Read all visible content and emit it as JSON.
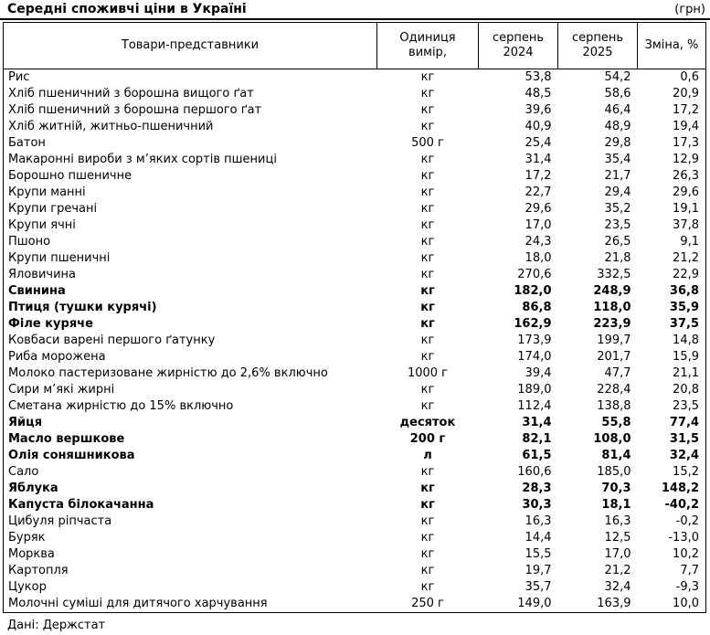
{
  "title": "Середні споживчі ціни в Україні",
  "currency_note": "(грн)",
  "footer": "Дані: Держстат",
  "chart_data": {
    "type": "table",
    "title": "Середні споживчі ціни в Україні",
    "unit_note": "(грн)",
    "source": "Дані: Держстат",
    "columns": [
      "Товари-представники",
      "Одиниця вимір,",
      "серпень 2024",
      "серпень 2025",
      "Зміна, %"
    ],
    "rows": [
      {
        "product": "Рис",
        "unit": "кг",
        "aug2024": "53,8",
        "aug2025": "54,2",
        "change_pct": "0,6",
        "bold": false
      },
      {
        "product": "Хліб пшеничний з борошна вищого ґат",
        "unit": "кг",
        "aug2024": "48,5",
        "aug2025": "58,6",
        "change_pct": "20,9",
        "bold": false
      },
      {
        "product": "Хліб пшеничний з борошна першого ґат",
        "unit": "кг",
        "aug2024": "39,6",
        "aug2025": "46,4",
        "change_pct": "17,2",
        "bold": false
      },
      {
        "product": "Хліб житній, житньо-пшеничний",
        "unit": "кг",
        "aug2024": "40,9",
        "aug2025": "48,9",
        "change_pct": "19,4",
        "bold": false
      },
      {
        "product": "Батон",
        "unit": "500 г",
        "aug2024": "25,4",
        "aug2025": "29,8",
        "change_pct": "17,3",
        "bold": false
      },
      {
        "product": "Макаронні вироби з м’яких сортів пшениці",
        "unit": "кг",
        "aug2024": "31,4",
        "aug2025": "35,4",
        "change_pct": "12,9",
        "bold": false
      },
      {
        "product": "Борошно пшеничне",
        "unit": "кг",
        "aug2024": "17,2",
        "aug2025": "21,7",
        "change_pct": "26,3",
        "bold": false
      },
      {
        "product": "Крупи манні",
        "unit": "кг",
        "aug2024": "22,7",
        "aug2025": "29,4",
        "change_pct": "29,6",
        "bold": false
      },
      {
        "product": "Крупи гречані",
        "unit": "кг",
        "aug2024": "29,6",
        "aug2025": "35,2",
        "change_pct": "19,1",
        "bold": false
      },
      {
        "product": "Крупи ячні",
        "unit": "кг",
        "aug2024": "17,0",
        "aug2025": "23,5",
        "change_pct": "37,8",
        "bold": false
      },
      {
        "product": "Пшоно",
        "unit": "кг",
        "aug2024": "24,3",
        "aug2025": "26,5",
        "change_pct": "9,1",
        "bold": false
      },
      {
        "product": "Крупи пшеничні",
        "unit": "кг",
        "aug2024": "18,0",
        "aug2025": "21,8",
        "change_pct": "21,2",
        "bold": false
      },
      {
        "product": "Яловичина",
        "unit": "кг",
        "aug2024": "270,6",
        "aug2025": "332,5",
        "change_pct": "22,9",
        "bold": false
      },
      {
        "product": "Свинина",
        "unit": "кг",
        "aug2024": "182,0",
        "aug2025": "248,9",
        "change_pct": "36,8",
        "bold": true
      },
      {
        "product": "Птиця (тушки курячі)",
        "unit": "кг",
        "aug2024": "86,8",
        "aug2025": "118,0",
        "change_pct": "35,9",
        "bold": true
      },
      {
        "product": "Філе куряче",
        "unit": "кг",
        "aug2024": "162,9",
        "aug2025": "223,9",
        "change_pct": "37,5",
        "bold": true
      },
      {
        "product": "Ковбаси варені першого ґатунку",
        "unit": "кг",
        "aug2024": "173,9",
        "aug2025": "199,7",
        "change_pct": "14,8",
        "bold": false
      },
      {
        "product": "Риба морожена",
        "unit": "кг",
        "aug2024": "174,0",
        "aug2025": "201,7",
        "change_pct": "15,9",
        "bold": false
      },
      {
        "product": "Молоко пастеризоване жирністю до 2,6% включно",
        "unit": "1000 г",
        "aug2024": "39,4",
        "aug2025": "47,7",
        "change_pct": "21,1",
        "bold": false
      },
      {
        "product": "Сири м’які жирні",
        "unit": "кг",
        "aug2024": "189,0",
        "aug2025": "228,4",
        "change_pct": "20,8",
        "bold": false
      },
      {
        "product": "Сметана жирністю до 15% включно",
        "unit": "кг",
        "aug2024": "112,4",
        "aug2025": "138,8",
        "change_pct": "23,5",
        "bold": false
      },
      {
        "product": "Яйця",
        "unit": "десяток",
        "aug2024": "31,4",
        "aug2025": "55,8",
        "change_pct": "77,4",
        "bold": true
      },
      {
        "product": "Масло вершкове",
        "unit": "200 г",
        "aug2024": "82,1",
        "aug2025": "108,0",
        "change_pct": "31,5",
        "bold": true
      },
      {
        "product": "Олія соняшникова",
        "unit": "л",
        "aug2024": "61,5",
        "aug2025": "81,4",
        "change_pct": "32,4",
        "bold": true
      },
      {
        "product": "Сало",
        "unit": "кг",
        "aug2024": "160,6",
        "aug2025": "185,0",
        "change_pct": "15,2",
        "bold": false
      },
      {
        "product": "Яблука",
        "unit": "кг",
        "aug2024": "28,3",
        "aug2025": "70,3",
        "change_pct": "148,2",
        "bold": true
      },
      {
        "product": "Капуста білокачанна",
        "unit": "кг",
        "aug2024": "30,3",
        "aug2025": "18,1",
        "change_pct": "-40,2",
        "bold": true
      },
      {
        "product": "Цибуля ріпчаста",
        "unit": "кг",
        "aug2024": "16,3",
        "aug2025": "16,3",
        "change_pct": "-0,2",
        "bold": false
      },
      {
        "product": "Буряк",
        "unit": "кг",
        "aug2024": "14,4",
        "aug2025": "12,5",
        "change_pct": "-13,0",
        "bold": false
      },
      {
        "product": "Морква",
        "unit": "кг",
        "aug2024": "15,5",
        "aug2025": "17,0",
        "change_pct": "10,2",
        "bold": false
      },
      {
        "product": "Картопля",
        "unit": "кг",
        "aug2024": "19,7",
        "aug2025": "21,2",
        "change_pct": "7,7",
        "bold": false
      },
      {
        "product": "Цукор",
        "unit": "кг",
        "aug2024": "35,7",
        "aug2025": "32,4",
        "change_pct": "-9,3",
        "bold": false
      },
      {
        "product": "Молочні суміші для дитячого харчування",
        "unit": "250 г",
        "aug2024": "149,0",
        "aug2025": "163,9",
        "change_pct": "10,0",
        "bold": false
      }
    ]
  }
}
